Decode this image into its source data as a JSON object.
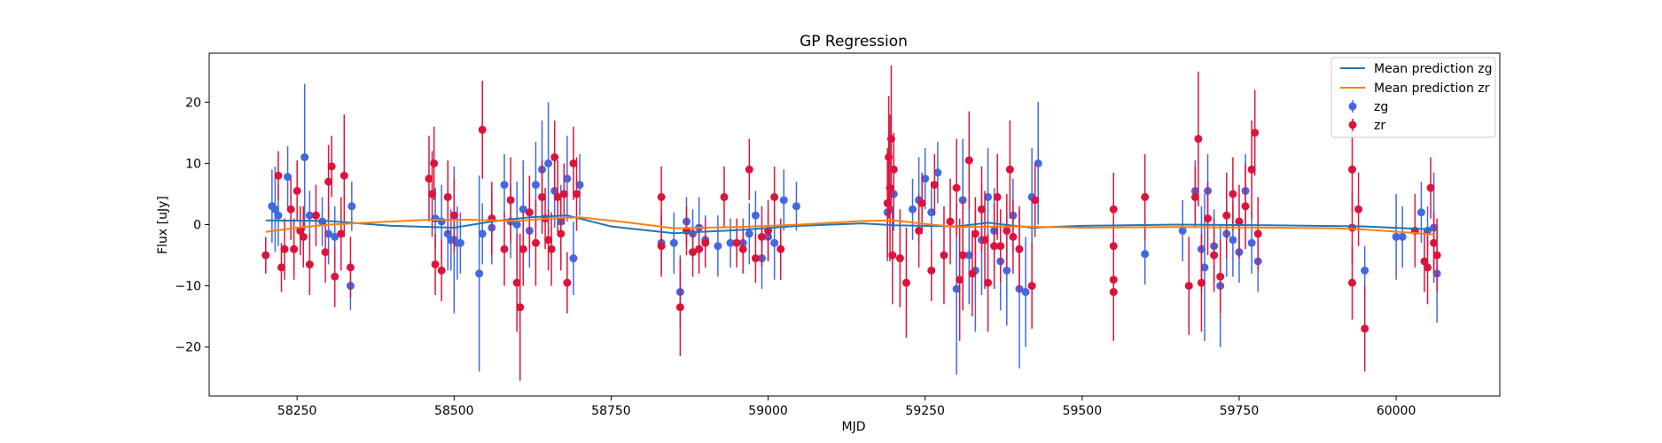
{
  "chart_data": {
    "type": "scatter",
    "title": "GP Regression",
    "xlabel": "MJD",
    "ylabel": "Flux [uJy]",
    "xlim": [
      58110,
      60165
    ],
    "ylim": [
      -28,
      28
    ],
    "xticks": [
      58250,
      58500,
      58750,
      59000,
      59250,
      59500,
      59750,
      60000
    ],
    "yticks": [
      -20,
      -10,
      0,
      10,
      20
    ],
    "grid": false,
    "legend_position": "top-right",
    "legend": [
      "Mean prediction zg",
      "Mean prediction zr",
      "zg",
      "zr"
    ],
    "colors": {
      "zg_line": "#1f77b4",
      "zr_line": "#ff7f0e",
      "zg_points": "#4169e1",
      "zr_points": "#dc143c"
    },
    "series": [
      {
        "name": "Mean prediction zg",
        "kind": "line",
        "x": [
          58200,
          58300,
          58400,
          58500,
          58560,
          58620,
          58680,
          58750,
          58850,
          58950,
          59050,
          59150,
          59200,
          59300,
          59350,
          59420,
          59500,
          59650,
          59800,
          59950,
          60060
        ],
        "y": [
          0.7,
          0.6,
          -0.2,
          -0.5,
          0.5,
          1.2,
          1.5,
          -0.3,
          -1.4,
          -0.9,
          -0.2,
          0.2,
          -0.1,
          -0.3,
          0.3,
          -0.5,
          -0.2,
          0.0,
          -0.1,
          -0.3,
          -0.8
        ]
      },
      {
        "name": "Mean prediction zr",
        "kind": "line",
        "x": [
          58200,
          58250,
          58300,
          58400,
          58460,
          58520,
          58600,
          58650,
          58700,
          58780,
          58850,
          58950,
          59050,
          59150,
          59200,
          59250,
          59300,
          59400,
          59500,
          59650,
          59800,
          59900,
          59950,
          60060
        ],
        "y": [
          -1.2,
          -0.5,
          0.0,
          0.5,
          0.8,
          0.8,
          0.6,
          1.0,
          1.2,
          0.3,
          -0.6,
          -0.4,
          0.0,
          0.6,
          0.7,
          0.1,
          -0.4,
          -0.3,
          -0.5,
          -0.4,
          -0.5,
          -0.6,
          -0.8,
          -1.6
        ]
      },
      {
        "name": "zg",
        "kind": "errorbar",
        "points": [
          [
            58210,
            3.0,
            6
          ],
          [
            58215,
            2.5,
            7
          ],
          [
            58220,
            1.5,
            5
          ],
          [
            58235,
            7.8,
            5
          ],
          [
            58262,
            11.0,
            12
          ],
          [
            58270,
            1.5,
            4
          ],
          [
            58290,
            0.5,
            4
          ],
          [
            58300,
            -1.5,
            5
          ],
          [
            58310,
            -2.0,
            5
          ],
          [
            58335,
            -10.0,
            4
          ],
          [
            58337,
            3.0,
            4
          ],
          [
            58470,
            1.0,
            5
          ],
          [
            58480,
            0.5,
            6
          ],
          [
            58490,
            -1.5,
            6
          ],
          [
            58495,
            -2.5,
            5
          ],
          [
            58500,
            -2.5,
            12
          ],
          [
            58505,
            -3.0,
            6
          ],
          [
            58510,
            -3.0,
            5
          ],
          [
            58540,
            -8.0,
            16
          ],
          [
            58545,
            -1.5,
            5
          ],
          [
            58560,
            -0.5,
            6
          ],
          [
            58580,
            6.5,
            5
          ],
          [
            58590,
            0.5,
            6
          ],
          [
            58600,
            0.0,
            7
          ],
          [
            58610,
            2.5,
            8
          ],
          [
            58620,
            -1.0,
            6
          ],
          [
            58630,
            6.5,
            7
          ],
          [
            58640,
            9.0,
            8
          ],
          [
            58650,
            10.0,
            10
          ],
          [
            58660,
            5.5,
            6
          ],
          [
            58670,
            0.5,
            6
          ],
          [
            58680,
            7.5,
            7
          ],
          [
            58690,
            -5.5,
            6
          ],
          [
            58700,
            6.5,
            5
          ],
          [
            58830,
            -3.0,
            5
          ],
          [
            58850,
            -3.0,
            5
          ],
          [
            58860,
            -11.0,
            6
          ],
          [
            58870,
            0.5,
            4
          ],
          [
            58880,
            -1.5,
            4
          ],
          [
            58890,
            -0.5,
            5
          ],
          [
            58900,
            -2.5,
            4
          ],
          [
            58920,
            -3.5,
            5
          ],
          [
            58940,
            -3.0,
            4
          ],
          [
            58960,
            -3.0,
            4
          ],
          [
            58970,
            -1.5,
            5
          ],
          [
            58980,
            1.5,
            4
          ],
          [
            58990,
            -5.5,
            5
          ],
          [
            59000,
            -2.0,
            4
          ],
          [
            59010,
            -3.0,
            6
          ],
          [
            59025,
            4.0,
            5
          ],
          [
            59045,
            3.0,
            4
          ],
          [
            59190,
            2.0,
            8
          ],
          [
            59200,
            5.0,
            6
          ],
          [
            59230,
            2.5,
            5
          ],
          [
            59240,
            4.0,
            7
          ],
          [
            59250,
            7.5,
            5
          ],
          [
            59260,
            2.0,
            5
          ],
          [
            59270,
            8.5,
            5
          ],
          [
            59300,
            -10.5,
            14
          ],
          [
            59310,
            4.0,
            10
          ],
          [
            59320,
            -5.0,
            8
          ],
          [
            59330,
            -7.5,
            10
          ],
          [
            59340,
            -2.5,
            9
          ],
          [
            59350,
            4.5,
            8
          ],
          [
            59360,
            -1.0,
            7
          ],
          [
            59370,
            -6.0,
            8
          ],
          [
            59380,
            -7.5,
            9
          ],
          [
            59390,
            1.5,
            6
          ],
          [
            59400,
            -10.5,
            13
          ],
          [
            59410,
            -11.0,
            9
          ],
          [
            59420,
            4.5,
            8
          ],
          [
            59430,
            10.0,
            10
          ],
          [
            59600,
            -4.8,
            5
          ],
          [
            59660,
            -1.0,
            5
          ],
          [
            59680,
            5.5,
            5
          ],
          [
            59690,
            -4.0,
            7
          ],
          [
            59695,
            -7.0,
            12
          ],
          [
            59700,
            5.5,
            6
          ],
          [
            59710,
            -3.5,
            6
          ],
          [
            59720,
            -10.0,
            10
          ],
          [
            59730,
            -1.5,
            7
          ],
          [
            59740,
            -2.5,
            6
          ],
          [
            59750,
            -4.5,
            5
          ],
          [
            59760,
            5.5,
            6
          ],
          [
            59770,
            -3.0,
            5
          ],
          [
            59780,
            -6.0,
            5
          ],
          [
            59950,
            -7.5,
            4
          ],
          [
            60000,
            -2.0,
            7
          ],
          [
            60010,
            -2.0,
            5
          ],
          [
            60040,
            2.0,
            5
          ],
          [
            60050,
            -1.0,
            4
          ],
          [
            60060,
            -0.5,
            9
          ],
          [
            60065,
            -8.0,
            8
          ]
        ]
      },
      {
        "name": "zr",
        "kind": "errorbar",
        "points": [
          [
            58200,
            -5.0,
            3
          ],
          [
            58220,
            8.0,
            4
          ],
          [
            58225,
            -7.0,
            4
          ],
          [
            58230,
            -4.0,
            5
          ],
          [
            58240,
            2.5,
            5
          ],
          [
            58245,
            -4.0,
            5
          ],
          [
            58250,
            5.5,
            5
          ],
          [
            58255,
            -1.0,
            4
          ],
          [
            58260,
            -2.0,
            5
          ],
          [
            58270,
            -6.5,
            5
          ],
          [
            58280,
            1.5,
            5
          ],
          [
            58295,
            -4.5,
            5
          ],
          [
            58300,
            7.0,
            6
          ],
          [
            58305,
            9.5,
            5
          ],
          [
            58310,
            -8.5,
            5
          ],
          [
            58320,
            -1.5,
            6
          ],
          [
            58325,
            8.0,
            10
          ],
          [
            58335,
            -7.0,
            5
          ],
          [
            58460,
            7.5,
            7
          ],
          [
            58465,
            5.0,
            7
          ],
          [
            58468,
            10.0,
            6
          ],
          [
            58470,
            -6.5,
            5
          ],
          [
            58480,
            -7.5,
            5
          ],
          [
            58490,
            4.5,
            6
          ],
          [
            58500,
            1.5,
            6
          ],
          [
            58545,
            15.5,
            8
          ],
          [
            58560,
            1.0,
            6
          ],
          [
            58580,
            -4.0,
            6
          ],
          [
            58590,
            4.0,
            7
          ],
          [
            58600,
            -9.5,
            8
          ],
          [
            58605,
            -13.5,
            12
          ],
          [
            58610,
            -4.0,
            6
          ],
          [
            58620,
            2.0,
            6
          ],
          [
            58630,
            -3.0,
            7
          ],
          [
            58640,
            4.5,
            6
          ],
          [
            58645,
            1.0,
            5
          ],
          [
            58650,
            -2.5,
            5
          ],
          [
            58655,
            -4.0,
            6
          ],
          [
            58660,
            11.0,
            6
          ],
          [
            58665,
            4.5,
            6
          ],
          [
            58670,
            -1.5,
            6
          ],
          [
            58675,
            5.0,
            5
          ],
          [
            58680,
            -9.5,
            5
          ],
          [
            58690,
            10.0,
            6
          ],
          [
            58695,
            5.0,
            6
          ],
          [
            58830,
            4.5,
            5
          ],
          [
            58830,
            -3.5,
            5
          ],
          [
            58860,
            -13.5,
            8
          ],
          [
            58870,
            -1.0,
            4
          ],
          [
            58880,
            -4.5,
            4
          ],
          [
            58890,
            -4.0,
            4
          ],
          [
            58900,
            -3.0,
            4
          ],
          [
            58930,
            4.5,
            5
          ],
          [
            58950,
            -3.0,
            4
          ],
          [
            58960,
            -4.0,
            4
          ],
          [
            58970,
            9.0,
            5
          ],
          [
            58980,
            -5.5,
            4
          ],
          [
            58990,
            -2.0,
            5
          ],
          [
            59000,
            -1.0,
            5
          ],
          [
            59010,
            4.5,
            5
          ],
          [
            59020,
            -4.0,
            5
          ],
          [
            59190,
            3.5,
            9
          ],
          [
            59192,
            11.0,
            10
          ],
          [
            59194,
            6.0,
            12
          ],
          [
            59196,
            14.0,
            12
          ],
          [
            59198,
            -5.0,
            8
          ],
          [
            59200,
            9.0,
            6
          ],
          [
            59210,
            -5.5,
            8
          ],
          [
            59220,
            -9.5,
            9
          ],
          [
            59240,
            -1.0,
            6
          ],
          [
            59245,
            3.5,
            5
          ],
          [
            59260,
            -7.5,
            5
          ],
          [
            59265,
            6.5,
            5
          ],
          [
            59280,
            -5.0,
            8
          ],
          [
            59290,
            0.5,
            7
          ],
          [
            59300,
            6.0,
            8
          ],
          [
            59305,
            -9.0,
            10
          ],
          [
            59310,
            -5.0,
            9
          ],
          [
            59320,
            10.5,
            8
          ],
          [
            59325,
            -8.0,
            7
          ],
          [
            59330,
            -1.5,
            6
          ],
          [
            59340,
            2.5,
            7
          ],
          [
            59345,
            -2.5,
            8
          ],
          [
            59350,
            -9.5,
            8
          ],
          [
            59360,
            -3.5,
            7
          ],
          [
            59365,
            4.5,
            7
          ],
          [
            59370,
            -3.5,
            6
          ],
          [
            59380,
            -1.0,
            6
          ],
          [
            59385,
            9.0,
            8
          ],
          [
            59390,
            -2.0,
            6
          ],
          [
            59400,
            -4.0,
            7
          ],
          [
            59420,
            -10.0,
            7
          ],
          [
            59425,
            4.0,
            6
          ],
          [
            59550,
            2.5,
            6
          ],
          [
            59550,
            -3.5,
            7
          ],
          [
            59550,
            -9.0,
            6
          ],
          [
            59550,
            -11.0,
            8
          ],
          [
            59600,
            4.5,
            7
          ],
          [
            59670,
            -10.0,
            8
          ],
          [
            59680,
            4.5,
            5
          ],
          [
            59685,
            14.0,
            11
          ],
          [
            59690,
            -9.5,
            8
          ],
          [
            59700,
            1.0,
            6
          ],
          [
            59710,
            -5.0,
            6
          ],
          [
            59720,
            -8.5,
            6
          ],
          [
            59730,
            1.5,
            7
          ],
          [
            59740,
            5.0,
            6
          ],
          [
            59750,
            0.5,
            6
          ],
          [
            59760,
            3.0,
            7
          ],
          [
            59770,
            9.0,
            8
          ],
          [
            59775,
            15.0,
            7
          ],
          [
            59780,
            -1.5,
            6
          ],
          [
            59930,
            9.0,
            7
          ],
          [
            59930,
            -0.5,
            6
          ],
          [
            59930,
            -9.5,
            6
          ],
          [
            59940,
            2.5,
            6
          ],
          [
            59950,
            -17.0,
            7
          ],
          [
            60030,
            -1.0,
            6
          ],
          [
            60045,
            -6.0,
            5
          ],
          [
            60050,
            -7.0,
            6
          ],
          [
            60055,
            6.0,
            5
          ],
          [
            60060,
            -3.0,
            5
          ],
          [
            60065,
            -5.0,
            6
          ]
        ]
      }
    ]
  }
}
